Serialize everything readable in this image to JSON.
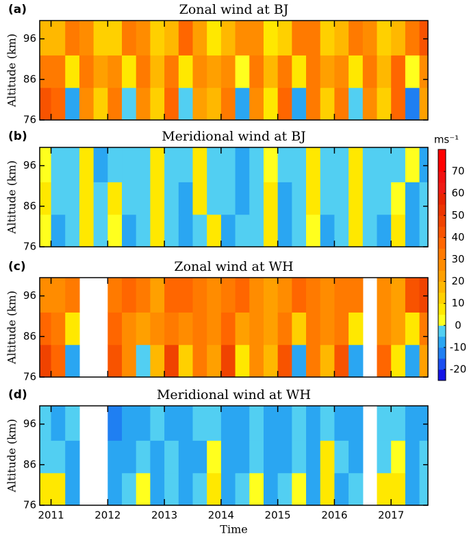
{
  "colorbar": {
    "label": "ms⁻¹",
    "ticks": [
      -20,
      -10,
      0,
      10,
      20,
      30,
      40,
      50,
      60,
      70
    ],
    "levels": [
      -25,
      -20,
      -15,
      -10,
      -5,
      0,
      5,
      10,
      15,
      20,
      25,
      30,
      35,
      40,
      45,
      50,
      55,
      60,
      65,
      70,
      75,
      80
    ],
    "colors": [
      "#1414e6",
      "#1a4ef0",
      "#1f7ff2",
      "#2aa6f2",
      "#52cff2",
      "#ffff1e",
      "#ffe800",
      "#ffd000",
      "#ffb800",
      "#ffa000",
      "#ff8c00",
      "#ff7a00",
      "#ff6600",
      "#f85300",
      "#f04300",
      "#ec3400",
      "#e82400",
      "#f01a14",
      "#f21010",
      "#ff0000",
      "#ff0000"
    ]
  },
  "chart_data": [
    {
      "type": "heatmap",
      "label": "(a)",
      "title": "Zonal wind at BJ",
      "ylabel": "Altitude (km)",
      "xbins": [
        2010.8,
        2011.0,
        2011.25,
        2011.5,
        2011.75,
        2012.0,
        2012.25,
        2012.5,
        2012.75,
        2013.0,
        2013.25,
        2013.5,
        2013.75,
        2014.0,
        2014.25,
        2014.5,
        2014.75,
        2015.0,
        2015.25,
        2015.5,
        2015.75,
        2016.0,
        2016.25,
        2016.5,
        2016.75,
        2017.0,
        2017.25,
        2017.5,
        2017.65
      ],
      "ybins": [
        76,
        84,
        92,
        100.5
      ],
      "values": [
        [
          40,
          35,
          -8,
          25,
          12,
          32,
          -5,
          28,
          10,
          38,
          -3,
          22,
          15,
          30,
          -10,
          25,
          8,
          35,
          -6,
          30,
          12,
          33,
          -4,
          26,
          10,
          38,
          -12,
          20
        ],
        [
          30,
          30,
          5,
          32,
          20,
          28,
          8,
          30,
          18,
          32,
          6,
          28,
          22,
          26,
          2,
          30,
          15,
          30,
          5,
          32,
          20,
          28,
          8,
          30,
          18,
          35,
          2,
          25
        ],
        [
          15,
          15,
          32,
          25,
          10,
          12,
          30,
          28,
          12,
          18,
          35,
          22,
          8,
          15,
          28,
          25,
          5,
          10,
          32,
          30,
          12,
          18,
          34,
          26,
          10,
          15,
          30,
          40
        ]
      ],
      "xlim": [
        2010.8,
        2017.65
      ],
      "ylim": [
        76,
        100.5
      ],
      "xticks": [
        2011,
        2012,
        2013,
        2014,
        2015,
        2016,
        2017
      ],
      "yticks": [
        76,
        86,
        96
      ]
    },
    {
      "type": "heatmap",
      "label": "(b)",
      "title": "Meridional wind at BJ",
      "ylabel": "Altitude (km)",
      "xbins": [
        2010.8,
        2011.0,
        2011.25,
        2011.5,
        2011.75,
        2012.0,
        2012.25,
        2012.5,
        2012.75,
        2013.0,
        2013.25,
        2013.5,
        2013.75,
        2014.0,
        2014.25,
        2014.5,
        2014.75,
        2015.0,
        2015.25,
        2015.5,
        2015.75,
        2016.0,
        2016.25,
        2016.5,
        2016.75,
        2017.0,
        2017.25,
        2017.5,
        2017.65
      ],
      "ybins": [
        76,
        84,
        92,
        100.5
      ],
      "values": [
        [
          0,
          -8,
          -5,
          5,
          -5,
          3,
          -8,
          -5,
          8,
          -5,
          -10,
          -3,
          5,
          -8,
          -5,
          -3,
          5,
          -10,
          -5,
          3,
          -8,
          -5,
          5,
          -3,
          -8,
          5,
          -10,
          -5
        ],
        [
          5,
          -5,
          -3,
          8,
          -5,
          5,
          -5,
          -3,
          5,
          -3,
          -8,
          5,
          -5,
          -5,
          -8,
          -3,
          5,
          -8,
          -5,
          5,
          -5,
          -3,
          8,
          -5,
          -5,
          3,
          -8,
          -5
        ],
        [
          3,
          -3,
          -5,
          5,
          -8,
          -3,
          -5,
          -3,
          5,
          -5,
          -5,
          5,
          -3,
          -3,
          -8,
          -5,
          3,
          -5,
          -3,
          8,
          -5,
          -5,
          5,
          -5,
          -3,
          -5,
          3,
          -8
        ]
      ],
      "xlim": [
        2010.8,
        2017.65
      ],
      "ylim": [
        76,
        100.5
      ],
      "xticks": [
        2011,
        2012,
        2013,
        2014,
        2015,
        2016,
        2017
      ],
      "yticks": [
        76,
        86,
        96
      ]
    },
    {
      "type": "heatmap",
      "label": "(c)",
      "title": "Zonal wind at WH",
      "ylabel": "Altitude (km)",
      "xbins": [
        2010.8,
        2011.0,
        2011.25,
        2011.5,
        2011.75,
        2012.0,
        2012.25,
        2012.5,
        2012.75,
        2013.0,
        2013.25,
        2013.5,
        2013.75,
        2014.0,
        2014.25,
        2014.5,
        2014.75,
        2015.0,
        2015.25,
        2015.5,
        2015.75,
        2016.0,
        2016.25,
        2016.5,
        2016.75,
        2017.0,
        2017.25,
        2017.5,
        2017.65
      ],
      "ybins": [
        76,
        84,
        92,
        100.5
      ],
      "values": [
        [
          45,
          35,
          -10,
          null,
          null,
          40,
          25,
          -5,
          15,
          45,
          10,
          30,
          20,
          45,
          5,
          25,
          15,
          42,
          -8,
          30,
          18,
          40,
          -10,
          null,
          35,
          5,
          -10,
          20
        ],
        [
          35,
          30,
          5,
          null,
          null,
          35,
          28,
          20,
          25,
          30,
          25,
          30,
          25,
          35,
          20,
          28,
          22,
          30,
          10,
          30,
          25,
          32,
          5,
          null,
          28,
          20,
          5,
          30
        ],
        [
          25,
          25,
          30,
          null,
          null,
          30,
          35,
          30,
          20,
          35,
          38,
          30,
          25,
          30,
          35,
          28,
          20,
          28,
          35,
          30,
          25,
          30,
          32,
          null,
          25,
          20,
          40,
          45
        ]
      ],
      "xlim": [
        2010.8,
        2017.65
      ],
      "ylim": [
        76,
        100.5
      ],
      "xticks": [
        2011,
        2012,
        2013,
        2014,
        2015,
        2016,
        2017
      ],
      "yticks": [
        76,
        86,
        96
      ]
    },
    {
      "type": "heatmap",
      "label": "(d)",
      "title": "Meridional wind at WH",
      "ylabel": "Altitude (km)",
      "xlabel": "Time",
      "xbins": [
        2010.8,
        2011.0,
        2011.25,
        2011.5,
        2011.75,
        2012.0,
        2012.25,
        2012.5,
        2012.75,
        2013.0,
        2013.25,
        2013.5,
        2013.75,
        2014.0,
        2014.25,
        2014.5,
        2014.75,
        2015.0,
        2015.25,
        2015.5,
        2015.75,
        2016.0,
        2016.25,
        2016.5,
        2016.75,
        2017.0,
        2017.25,
        2017.5,
        2017.65
      ],
      "ybins": [
        76,
        84,
        92,
        100.5
      ],
      "values": [
        [
          5,
          5,
          -8,
          null,
          null,
          -10,
          -5,
          0,
          -8,
          -5,
          -10,
          -5,
          5,
          -10,
          -5,
          3,
          -8,
          -5,
          0,
          -8,
          5,
          -8,
          -5,
          null,
          5,
          8,
          -8,
          -5
        ],
        [
          -5,
          -5,
          -8,
          null,
          null,
          -8,
          -10,
          -5,
          -8,
          -5,
          -10,
          -8,
          3,
          -10,
          -8,
          -5,
          -8,
          -8,
          -3,
          -8,
          5,
          -5,
          -10,
          null,
          -5,
          3,
          -8,
          -5
        ],
        [
          -3,
          -8,
          -5,
          null,
          null,
          -12,
          -8,
          -10,
          -5,
          -10,
          -8,
          -5,
          -3,
          -8,
          -10,
          -5,
          -8,
          -10,
          -5,
          -8,
          -3,
          -8,
          -10,
          null,
          -5,
          -5,
          -10,
          -8
        ]
      ],
      "xlim": [
        2010.8,
        2017.65
      ],
      "ylim": [
        76,
        100.5
      ],
      "xticks": [
        2011,
        2012,
        2013,
        2014,
        2015,
        2016,
        2017
      ],
      "yticks": [
        76,
        86,
        96
      ]
    }
  ]
}
